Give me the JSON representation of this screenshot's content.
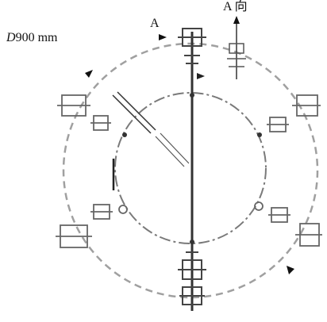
{
  "diameter_label": {
    "symbol": "D",
    "value": "900 mm"
  },
  "section_marker_left": "A",
  "view_direction_label": "A 向",
  "colors": {
    "line": "#555555",
    "dash": "#9a9a9a",
    "ink": "#111111"
  }
}
